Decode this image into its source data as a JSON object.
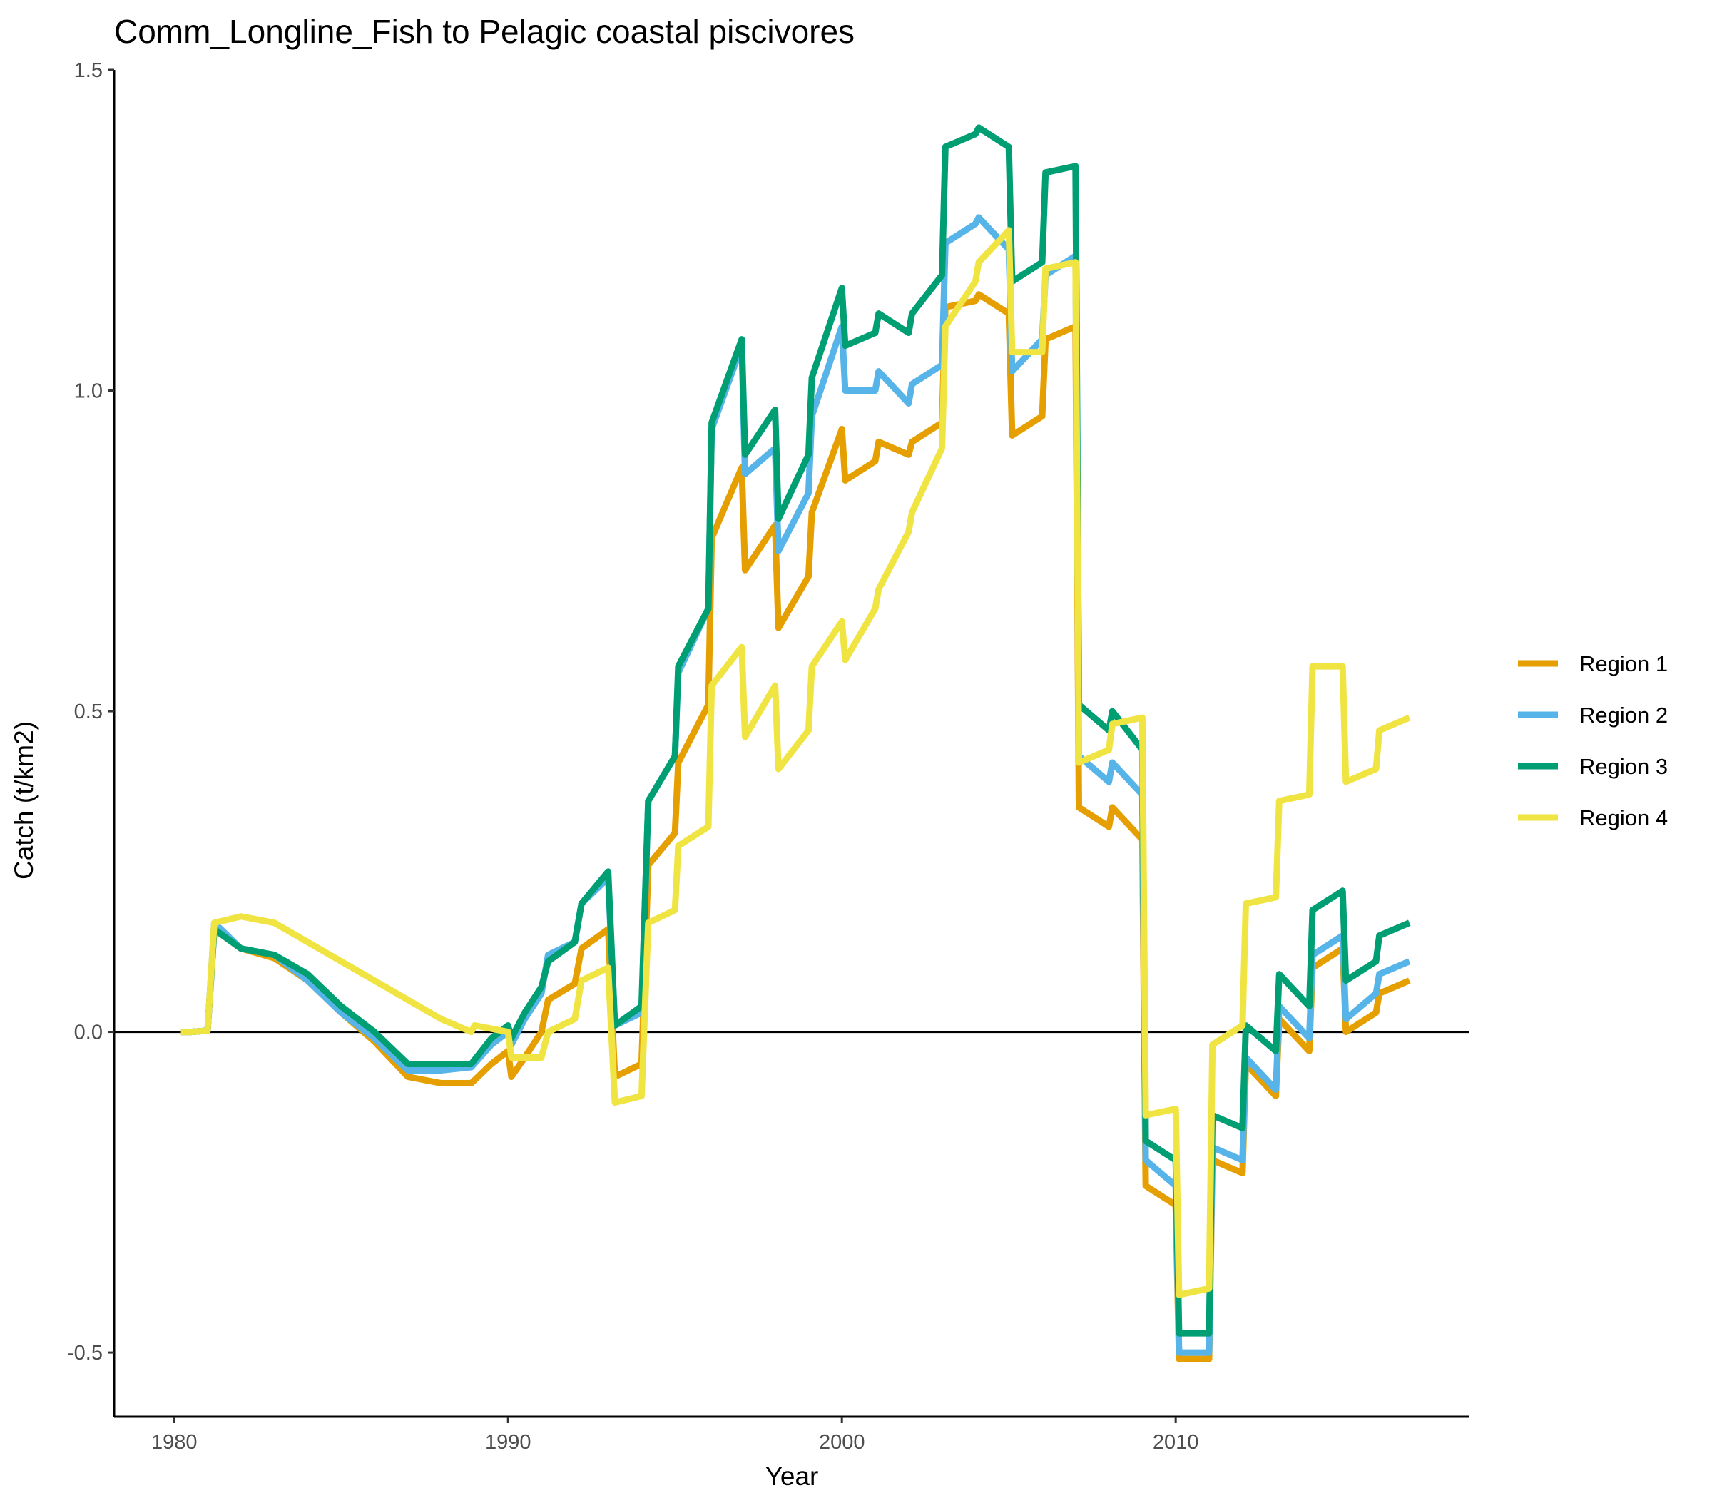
{
  "chart_data": {
    "type": "line",
    "title": "Comm_Longline_Fish to Pelagic coastal piscivores",
    "xlabel": "Year",
    "ylabel": "Catch (t/km2)",
    "xlim": [
      1978.2,
      2018.8
    ],
    "ylim": [
      -0.6,
      1.5
    ],
    "x_ticks": [
      1980,
      1990,
      2000,
      2010
    ],
    "x_tick_labels": [
      "1980",
      "1990",
      "2000",
      "2010"
    ],
    "y_ticks": [
      -0.5,
      0.0,
      0.5,
      1.0,
      1.5
    ],
    "y_tick_labels": [
      "-0.5",
      "0.0",
      "0.5",
      "1.0",
      "1.5"
    ],
    "reference_line_y": 0,
    "grid": false,
    "legend_position": "right",
    "series": [
      {
        "name": "Region 1",
        "color": "#E69F00",
        "points": [
          [
            1980.2,
            0
          ],
          [
            1980.5,
            0
          ],
          [
            1981,
            0.002
          ],
          [
            1981.2,
            0.16
          ],
          [
            1982,
            0.13
          ],
          [
            1983,
            0.115
          ],
          [
            1984,
            0.08
          ],
          [
            1985,
            0.03
          ],
          [
            1986,
            -0.015
          ],
          [
            1987,
            -0.07
          ],
          [
            1988,
            -0.08
          ],
          [
            1988.9,
            -0.08
          ],
          [
            1989.5,
            -0.05
          ],
          [
            1990,
            -0.03
          ],
          [
            1990.1,
            -0.07
          ],
          [
            1990.5,
            -0.04
          ],
          [
            1991,
            0
          ],
          [
            1991.2,
            0.05
          ],
          [
            1992,
            0.075
          ],
          [
            1992.2,
            0.13
          ],
          [
            1993,
            0.16
          ],
          [
            1993.2,
            -0.07
          ],
          [
            1994,
            -0.05
          ],
          [
            1994.2,
            0.26
          ],
          [
            1995,
            0.31
          ],
          [
            1995.1,
            0.42
          ],
          [
            1996,
            0.51
          ],
          [
            1996.1,
            0.77
          ],
          [
            1997,
            0.88
          ],
          [
            1997.1,
            0.72
          ],
          [
            1998,
            0.79
          ],
          [
            1998.1,
            0.63
          ],
          [
            1999,
            0.71
          ],
          [
            1999.1,
            0.81
          ],
          [
            2000,
            0.94
          ],
          [
            2000.1,
            0.86
          ],
          [
            2001,
            0.89
          ],
          [
            2001.1,
            0.92
          ],
          [
            2002,
            0.9
          ],
          [
            2002.1,
            0.92
          ],
          [
            2003,
            0.95
          ],
          [
            2003.1,
            1.13
          ],
          [
            2004,
            1.14
          ],
          [
            2004.1,
            1.15
          ],
          [
            2005,
            1.12
          ],
          [
            2005.1,
            0.93
          ],
          [
            2006,
            0.96
          ],
          [
            2006.1,
            1.08
          ],
          [
            2007,
            1.1
          ],
          [
            2007.1,
            0.35
          ],
          [
            2008,
            0.32
          ],
          [
            2008.1,
            0.35
          ],
          [
            2009,
            0.3
          ],
          [
            2009.1,
            -0.24
          ],
          [
            2010,
            -0.27
          ],
          [
            2010.1,
            -0.51
          ],
          [
            2011,
            -0.51
          ],
          [
            2011.1,
            -0.2
          ],
          [
            2012,
            -0.22
          ],
          [
            2012.1,
            -0.05
          ],
          [
            2013,
            -0.1
          ],
          [
            2013.1,
            0.02
          ],
          [
            2014,
            -0.03
          ],
          [
            2014.1,
            0.1
          ],
          [
            2015,
            0.13
          ],
          [
            2015.1,
            0
          ],
          [
            2016,
            0.03
          ],
          [
            2016.1,
            0.06
          ],
          [
            2017,
            0.08
          ]
        ]
      },
      {
        "name": "Region 2",
        "color": "#56B4E9",
        "points": [
          [
            1980.2,
            0
          ],
          [
            1980.5,
            0
          ],
          [
            1981,
            0.002
          ],
          [
            1981.2,
            0.17
          ],
          [
            1982,
            0.13
          ],
          [
            1983,
            0.12
          ],
          [
            1984,
            0.08
          ],
          [
            1985,
            0.03
          ],
          [
            1986,
            -0.01
          ],
          [
            1987,
            -0.06
          ],
          [
            1988,
            -0.06
          ],
          [
            1988.9,
            -0.055
          ],
          [
            1989.5,
            -0.02
          ],
          [
            1990,
            0
          ],
          [
            1990.1,
            -0.02
          ],
          [
            1990.5,
            0.02
          ],
          [
            1991,
            0.06
          ],
          [
            1991.2,
            0.12
          ],
          [
            1992,
            0.14
          ],
          [
            1992.2,
            0.2
          ],
          [
            1993,
            0.24
          ],
          [
            1993.2,
            0.01
          ],
          [
            1994,
            0.03
          ],
          [
            1994.2,
            0.36
          ],
          [
            1995,
            0.43
          ],
          [
            1995.1,
            0.56
          ],
          [
            1996,
            0.66
          ],
          [
            1996.1,
            0.94
          ],
          [
            1997,
            1.07
          ],
          [
            1997.1,
            0.87
          ],
          [
            1998,
            0.91
          ],
          [
            1998.1,
            0.75
          ],
          [
            1999,
            0.84
          ],
          [
            1999.1,
            0.96
          ],
          [
            2000,
            1.1
          ],
          [
            2000.1,
            1
          ],
          [
            2001,
            1
          ],
          [
            2001.1,
            1.03
          ],
          [
            2002,
            0.98
          ],
          [
            2002.1,
            1.01
          ],
          [
            2003,
            1.04
          ],
          [
            2003.1,
            1.23
          ],
          [
            2004,
            1.26
          ],
          [
            2004.1,
            1.27
          ],
          [
            2005,
            1.22
          ],
          [
            2005.1,
            1.03
          ],
          [
            2006,
            1.08
          ],
          [
            2006.1,
            1.18
          ],
          [
            2007,
            1.21
          ],
          [
            2007.1,
            0.43
          ],
          [
            2008,
            0.39
          ],
          [
            2008.1,
            0.42
          ],
          [
            2009,
            0.37
          ],
          [
            2009.1,
            -0.2
          ],
          [
            2010,
            -0.24
          ],
          [
            2010.1,
            -0.5
          ],
          [
            2011,
            -0.5
          ],
          [
            2011.1,
            -0.18
          ],
          [
            2012,
            -0.2
          ],
          [
            2012.1,
            -0.04
          ],
          [
            2013,
            -0.09
          ],
          [
            2013.1,
            0.04
          ],
          [
            2014,
            -0.01
          ],
          [
            2014.1,
            0.12
          ],
          [
            2015,
            0.15
          ],
          [
            2015.1,
            0.02
          ],
          [
            2016,
            0.06
          ],
          [
            2016.1,
            0.09
          ],
          [
            2017,
            0.11
          ]
        ]
      },
      {
        "name": "Region 3",
        "color": "#009E73",
        "points": [
          [
            1980.2,
            0
          ],
          [
            1980.5,
            0
          ],
          [
            1981,
            0.002
          ],
          [
            1981.2,
            0.16
          ],
          [
            1982,
            0.13
          ],
          [
            1983,
            0.12
          ],
          [
            1984,
            0.09
          ],
          [
            1985,
            0.04
          ],
          [
            1986,
            0
          ],
          [
            1987,
            -0.05
          ],
          [
            1988,
            -0.05
          ],
          [
            1988.9,
            -0.05
          ],
          [
            1989.5,
            -0.01
          ],
          [
            1990,
            0.01
          ],
          [
            1990.1,
            -0.01
          ],
          [
            1990.5,
            0.03
          ],
          [
            1991,
            0.07
          ],
          [
            1991.2,
            0.11
          ],
          [
            1992,
            0.14
          ],
          [
            1992.2,
            0.2
          ],
          [
            1993,
            0.25
          ],
          [
            1993.2,
            0.01
          ],
          [
            1994,
            0.04
          ],
          [
            1994.2,
            0.36
          ],
          [
            1995,
            0.43
          ],
          [
            1995.1,
            0.57
          ],
          [
            1996,
            0.66
          ],
          [
            1996.1,
            0.95
          ],
          [
            1997,
            1.08
          ],
          [
            1997.1,
            0.9
          ],
          [
            1998,
            0.97
          ],
          [
            1998.1,
            0.8
          ],
          [
            1999,
            0.9
          ],
          [
            1999.1,
            1.02
          ],
          [
            2000,
            1.16
          ],
          [
            2000.1,
            1.07
          ],
          [
            2001,
            1.09
          ],
          [
            2001.1,
            1.12
          ],
          [
            2002,
            1.09
          ],
          [
            2002.1,
            1.12
          ],
          [
            2003,
            1.18
          ],
          [
            2003.1,
            1.38
          ],
          [
            2004,
            1.4
          ],
          [
            2004.1,
            1.41
          ],
          [
            2005,
            1.38
          ],
          [
            2005.1,
            1.17
          ],
          [
            2006,
            1.2
          ],
          [
            2006.1,
            1.34
          ],
          [
            2007,
            1.35
          ],
          [
            2007.1,
            0.51
          ],
          [
            2008,
            0.47
          ],
          [
            2008.1,
            0.5
          ],
          [
            2009,
            0.44
          ],
          [
            2009.1,
            -0.17
          ],
          [
            2010,
            -0.2
          ],
          [
            2010.1,
            -0.47
          ],
          [
            2011,
            -0.47
          ],
          [
            2011.1,
            -0.13
          ],
          [
            2012,
            -0.15
          ],
          [
            2012.1,
            0.01
          ],
          [
            2013,
            -0.03
          ],
          [
            2013.1,
            0.09
          ],
          [
            2014,
            0.04
          ],
          [
            2014.1,
            0.19
          ],
          [
            2015,
            0.22
          ],
          [
            2015.1,
            0.08
          ],
          [
            2016,
            0.11
          ],
          [
            2016.1,
            0.15
          ],
          [
            2017,
            0.17
          ]
        ]
      },
      {
        "name": "Region 4",
        "color": "#F0E442",
        "points": [
          [
            1980.2,
            0
          ],
          [
            1980.5,
            0
          ],
          [
            1981,
            0.002
          ],
          [
            1981.2,
            0.17
          ],
          [
            1982,
            0.18
          ],
          [
            1983,
            0.17
          ],
          [
            1984,
            0.14
          ],
          [
            1985,
            0.11
          ],
          [
            1986,
            0.08
          ],
          [
            1987,
            0.05
          ],
          [
            1988,
            0.02
          ],
          [
            1988.9,
            0
          ],
          [
            1989,
            0.01
          ],
          [
            1990,
            0
          ],
          [
            1990.1,
            -0.04
          ],
          [
            1990.5,
            -0.04
          ],
          [
            1991,
            -0.04
          ],
          [
            1991.2,
            0
          ],
          [
            1992,
            0.02
          ],
          [
            1992.2,
            0.08
          ],
          [
            1993,
            0.1
          ],
          [
            1993.2,
            -0.11
          ],
          [
            1994,
            -0.1
          ],
          [
            1994.2,
            0.17
          ],
          [
            1995,
            0.19
          ],
          [
            1995.1,
            0.29
          ],
          [
            1996,
            0.32
          ],
          [
            1996.1,
            0.54
          ],
          [
            1997,
            0.6
          ],
          [
            1997.1,
            0.46
          ],
          [
            1998,
            0.54
          ],
          [
            1998.1,
            0.41
          ],
          [
            1999,
            0.47
          ],
          [
            1999.1,
            0.57
          ],
          [
            2000,
            0.64
          ],
          [
            2000.1,
            0.58
          ],
          [
            2001,
            0.66
          ],
          [
            2001.1,
            0.69
          ],
          [
            2002,
            0.78
          ],
          [
            2002.1,
            0.81
          ],
          [
            2003,
            0.91
          ],
          [
            2003.1,
            1.1
          ],
          [
            2004,
            1.17
          ],
          [
            2004.1,
            1.2
          ],
          [
            2005,
            1.25
          ],
          [
            2005.1,
            1.06
          ],
          [
            2006,
            1.06
          ],
          [
            2006.1,
            1.19
          ],
          [
            2007,
            1.2
          ],
          [
            2007.1,
            0.42
          ],
          [
            2008,
            0.44
          ],
          [
            2008.1,
            0.48
          ],
          [
            2009,
            0.49
          ],
          [
            2009.1,
            -0.13
          ],
          [
            2010,
            -0.12
          ],
          [
            2010.1,
            -0.41
          ],
          [
            2011,
            -0.4
          ],
          [
            2011.1,
            -0.02
          ],
          [
            2012,
            0.01
          ],
          [
            2012.1,
            0.2
          ],
          [
            2013,
            0.21
          ],
          [
            2013.1,
            0.36
          ],
          [
            2014,
            0.37
          ],
          [
            2014.1,
            0.57
          ],
          [
            2015,
            0.57
          ],
          [
            2015.1,
            0.39
          ],
          [
            2016,
            0.41
          ],
          [
            2016.1,
            0.47
          ],
          [
            2017,
            0.49
          ]
        ]
      }
    ]
  }
}
